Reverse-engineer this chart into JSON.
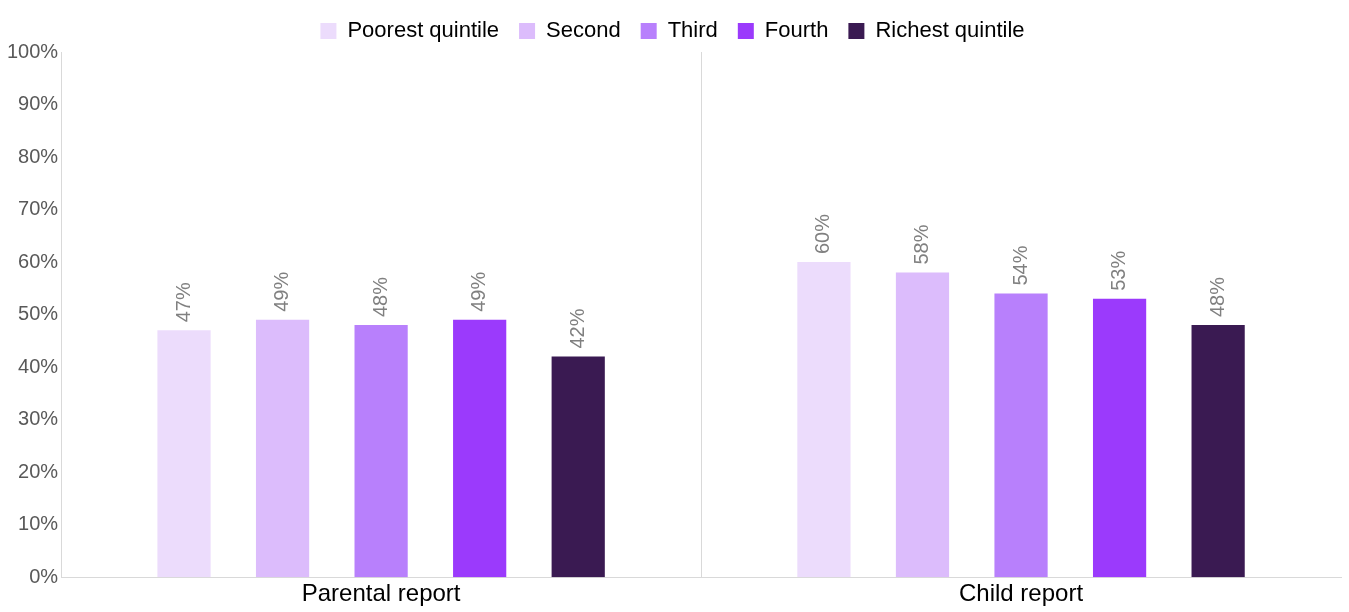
{
  "chart_data": {
    "type": "bar",
    "categories": [
      "Parental report",
      "Child report"
    ],
    "series": [
      {
        "name": "Poorest quintile",
        "color": "#ecdcfc",
        "values": [
          47,
          60
        ],
        "value_labels": [
          "47%",
          "60%"
        ]
      },
      {
        "name": "Second",
        "color": "#dcbcfc",
        "values": [
          49,
          58
        ],
        "value_labels": [
          "49%",
          "58%"
        ]
      },
      {
        "name": "Third",
        "color": "#b880fc",
        "values": [
          48,
          54
        ],
        "value_labels": [
          "48%",
          "54%"
        ]
      },
      {
        "name": "Fourth",
        "color": "#9b3afc",
        "values": [
          49,
          53
        ],
        "value_labels": [
          "49%",
          "53%"
        ]
      },
      {
        "name": "Richest quintile",
        "color": "#3a1a52",
        "values": [
          42,
          48
        ],
        "value_labels": [
          "42%",
          "48%"
        ]
      }
    ],
    "ylim": [
      0,
      100
    ],
    "yticks": [
      {
        "value": 0,
        "label": "0%"
      },
      {
        "value": 10,
        "label": "10%"
      },
      {
        "value": 20,
        "label": "20%"
      },
      {
        "value": 30,
        "label": "30%"
      },
      {
        "value": 40,
        "label": "40%"
      },
      {
        "value": 50,
        "label": "50%"
      },
      {
        "value": 60,
        "label": "60%"
      },
      {
        "value": 70,
        "label": "70%"
      },
      {
        "value": 80,
        "label": "80%"
      },
      {
        "value": 90,
        "label": "90%"
      },
      {
        "value": 100,
        "label": "100%"
      }
    ],
    "grid": "x",
    "legend": "top"
  }
}
